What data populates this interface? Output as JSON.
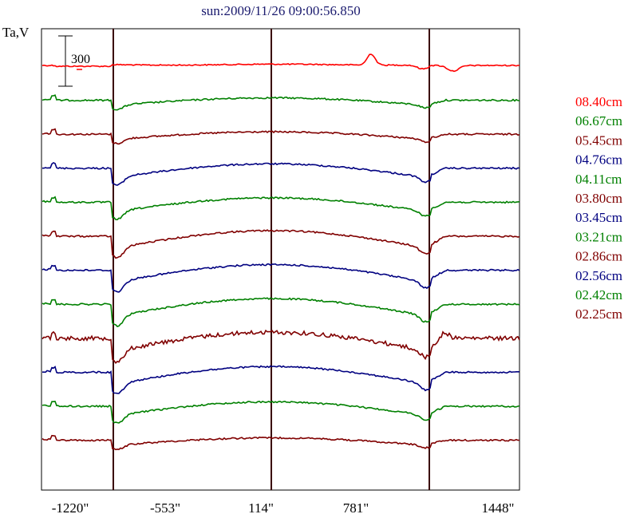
{
  "chart_data": {
    "type": "line",
    "title": "sun:2009/11/26 09:00:56.850",
    "ylabel": "Ta,V",
    "scale_bar_label": "300",
    "x_ticks": [
      "-1220\"",
      "-553\"",
      "114\"",
      "781\"",
      "1448\""
    ],
    "x_tick_values": [
      -1220,
      -553,
      114,
      781,
      1448
    ],
    "xlim": [
      -1220,
      1448
    ],
    "vertical_markers": [
      -953,
      1022
    ],
    "center_marker": 34,
    "grid": false,
    "legend_position": "right",
    "series": [
      {
        "name": "08.40cm",
        "color": "#ff0000",
        "profile": "flat_bump"
      },
      {
        "name": "06.67cm",
        "color": "#008000",
        "profile": "weak"
      },
      {
        "name": "05.45cm",
        "color": "#800000",
        "profile": "weak"
      },
      {
        "name": "04.76cm",
        "color": "#000080",
        "profile": "medium"
      },
      {
        "name": "04.11cm",
        "color": "#008000",
        "profile": "medium"
      },
      {
        "name": "03.80cm",
        "color": "#800000",
        "profile": "strong"
      },
      {
        "name": "03.45cm",
        "color": "#000080",
        "profile": "strong"
      },
      {
        "name": "03.21cm",
        "color": "#008000",
        "profile": "strong"
      },
      {
        "name": "02.86cm",
        "color": "#800000",
        "profile": "strong_noisy"
      },
      {
        "name": "02.56cm",
        "color": "#000080",
        "profile": "strong"
      },
      {
        "name": "02.42cm",
        "color": "#008000",
        "profile": "medium"
      },
      {
        "name": "02.25cm",
        "color": "#800000",
        "profile": "weak"
      }
    ]
  }
}
